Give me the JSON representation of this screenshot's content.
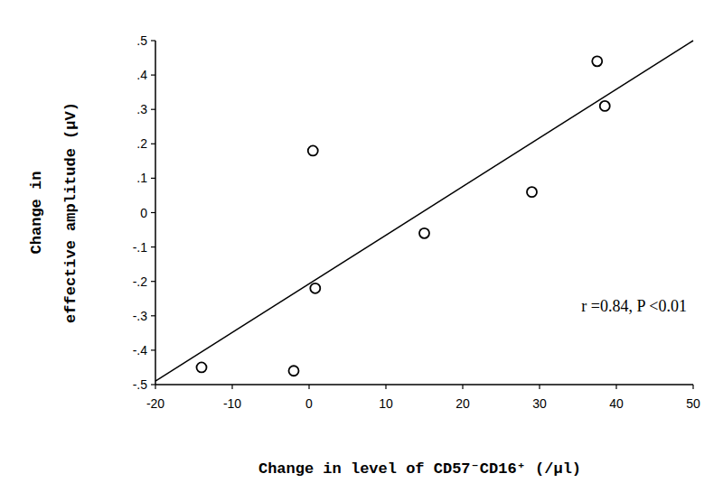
{
  "chart_data": {
    "type": "scatter",
    "x_label": "Change in level of CD57⁻CD16⁺ (/μl)",
    "y_label": [
      "Change in",
      "effective amplitude (μV)"
    ],
    "annotation": "r =0.84, P <0.01",
    "xlim": [
      -20,
      50
    ],
    "xticks": [
      -20,
      -10,
      0,
      10,
      20,
      30,
      40,
      50
    ],
    "ylim": [
      -0.5,
      0.5
    ],
    "yticks": [
      {
        "value": -0.5,
        "label": "-.5"
      },
      {
        "value": -0.4,
        "label": "-.4"
      },
      {
        "value": -0.3,
        "label": "-.3"
      },
      {
        "value": -0.2,
        "label": "-.2"
      },
      {
        "value": -0.1,
        "label": "-.1"
      },
      0,
      {
        "value": 0.1,
        "label": ".1"
      },
      {
        "value": 0.2,
        "label": ".2"
      },
      {
        "value": 0.3,
        "label": ".3"
      },
      {
        "value": 0.4,
        "label": ".4"
      },
      {
        "value": 0.5,
        "label": ".5"
      }
    ],
    "grid": false,
    "color": "#000000",
    "series": [
      {
        "type": "scatter",
        "marker": "circle",
        "color": "#000000",
        "x": [
          -14,
          -2,
          0.5,
          0.8,
          15,
          29,
          37.5,
          38.5
        ],
        "values": [
          -0.45,
          -0.46,
          0.18,
          -0.22,
          -0.06,
          0.06,
          0.44,
          0.31
        ]
      },
      {
        "type": "line",
        "line_style": "solid",
        "color": "#000000",
        "x": [
          -20,
          50
        ],
        "values": [
          -0.49,
          0.5
        ]
      }
    ]
  }
}
